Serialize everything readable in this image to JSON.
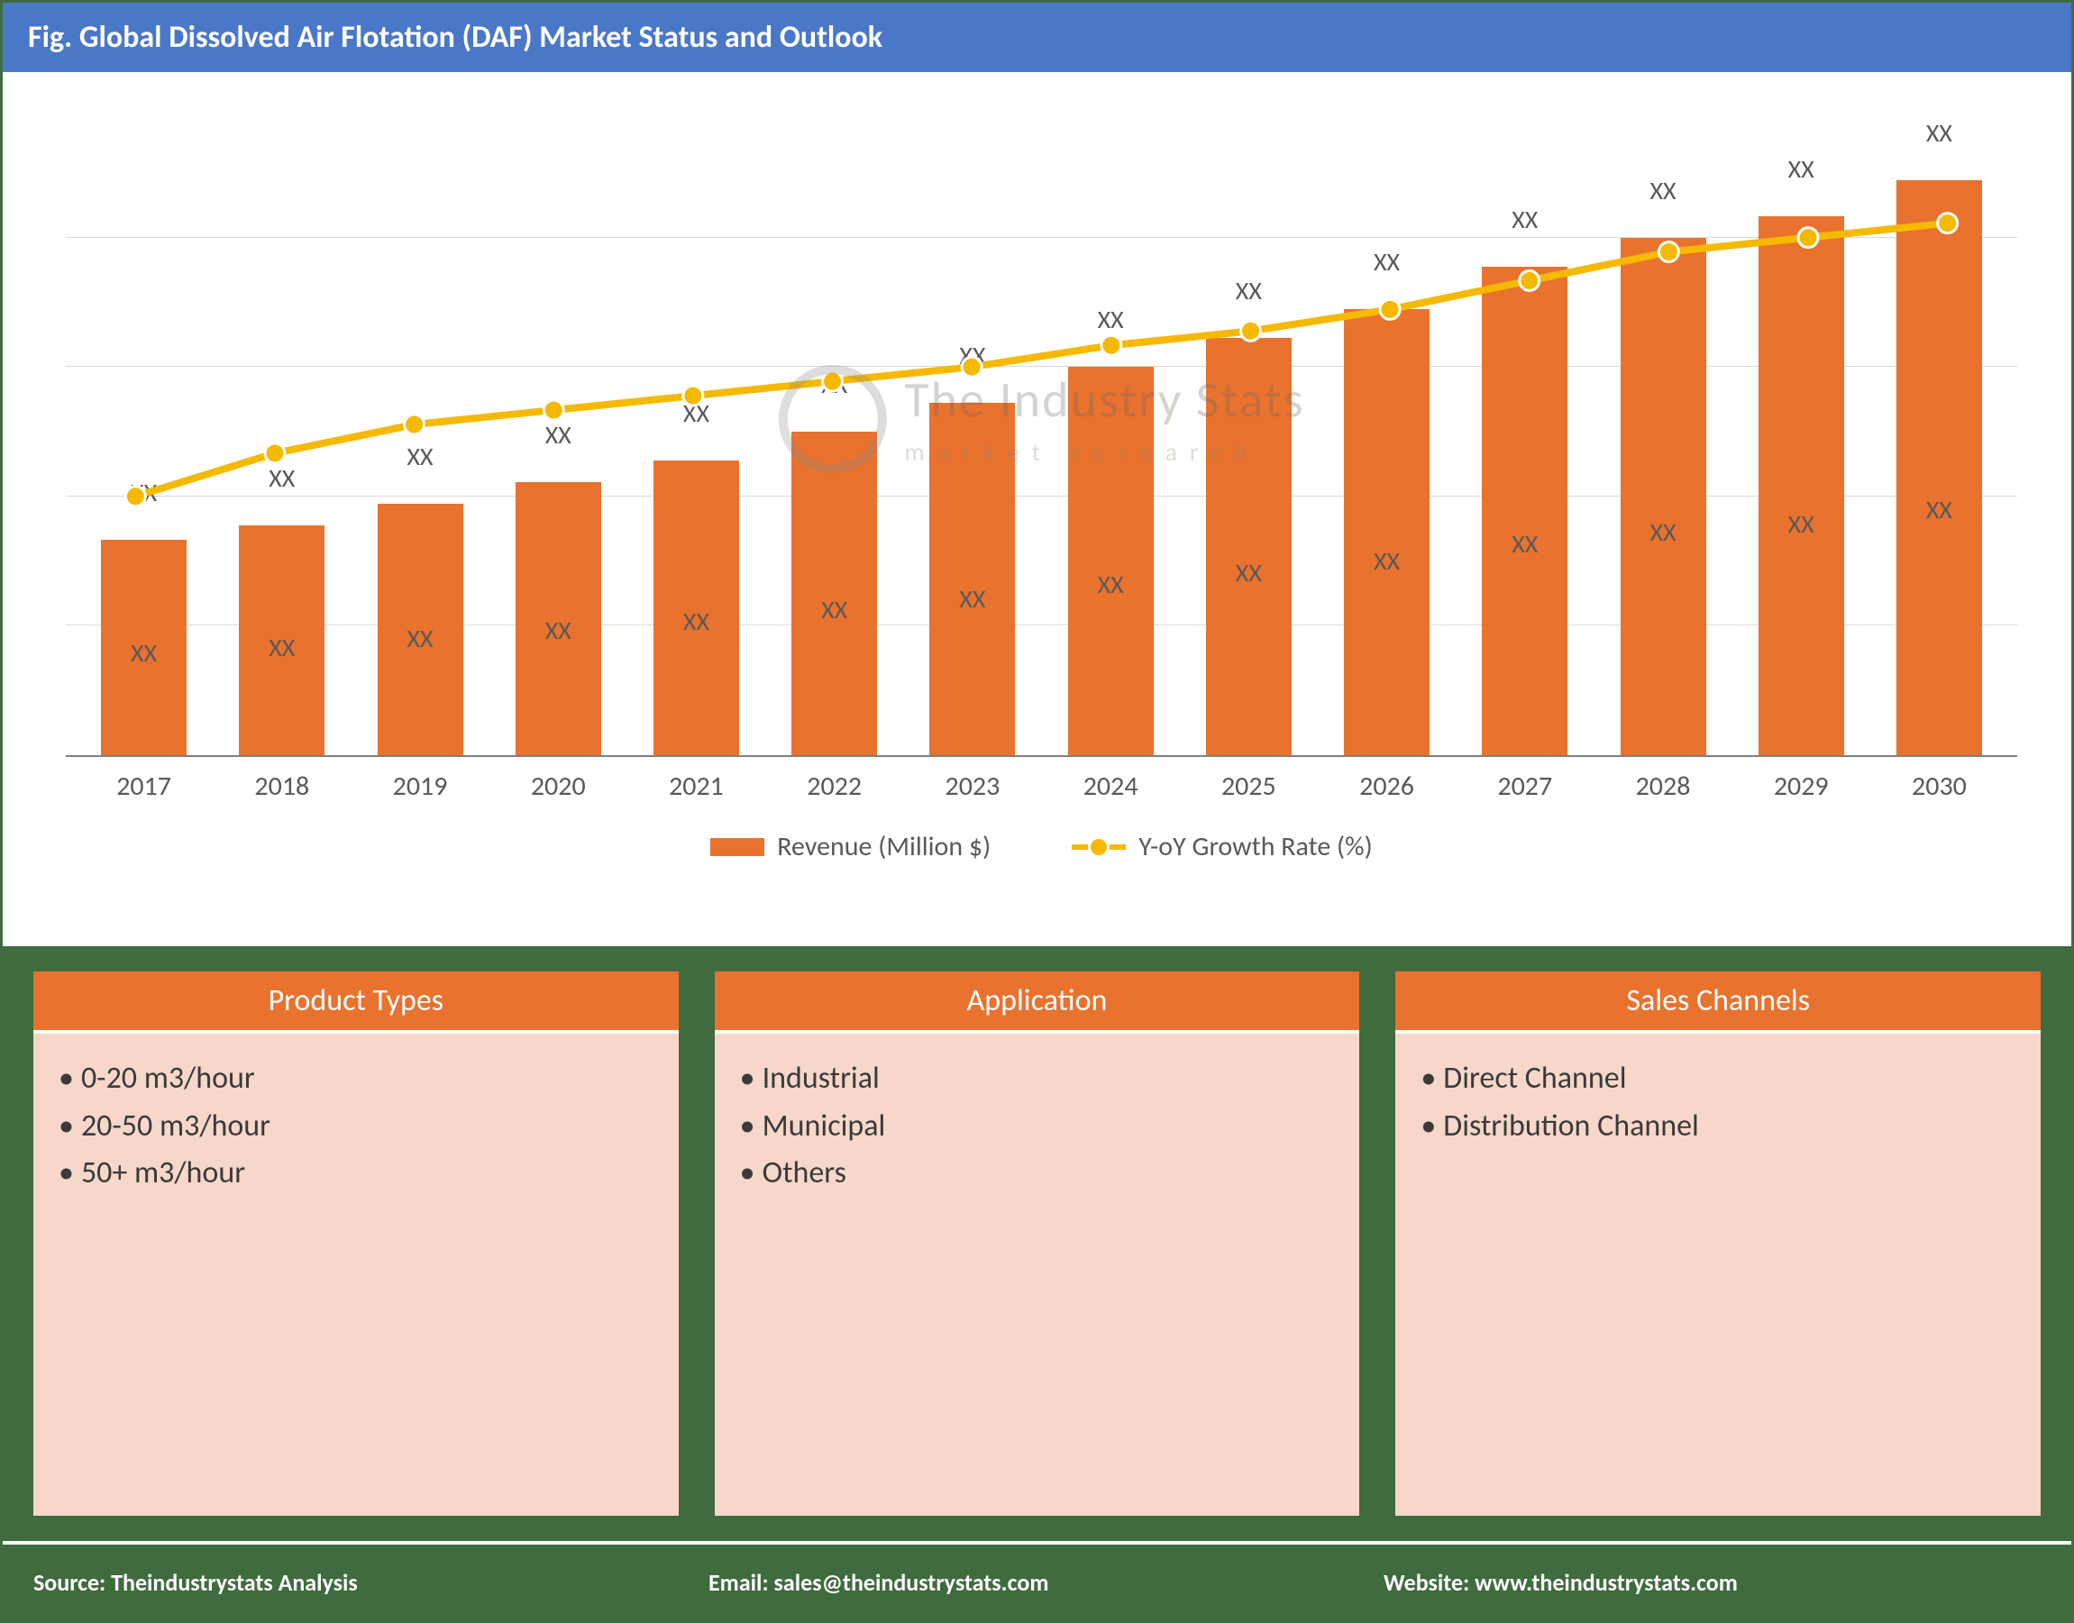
{
  "title": "Fig. Global Dissolved Air Flotation (DAF) Market Status and Outlook",
  "chart": {
    "type": "bar+line",
    "categories": [
      "2017",
      "2018",
      "2019",
      "2020",
      "2021",
      "2022",
      "2023",
      "2024",
      "2025",
      "2026",
      "2027",
      "2028",
      "2029",
      "2030"
    ],
    "bar_values": [
      300,
      320,
      350,
      380,
      410,
      450,
      490,
      540,
      580,
      620,
      680,
      720,
      750,
      800
    ],
    "bar_top_labels": [
      "XX",
      "XX",
      "XX",
      "XX",
      "XX",
      "XX",
      "XX",
      "XX",
      "XX",
      "XX",
      "XX",
      "XX",
      "XX",
      "XX"
    ],
    "bar_mid_labels": [
      "XX",
      "XX",
      "XX",
      "XX",
      "XX",
      "XX",
      "XX",
      "XX",
      "XX",
      "XX",
      "XX",
      "XX",
      "XX",
      "XX"
    ],
    "line_values": [
      360,
      420,
      460,
      480,
      500,
      520,
      540,
      570,
      590,
      620,
      660,
      700,
      720,
      740
    ],
    "y_max": 900,
    "bar_color": "#e9722e",
    "line_color": "#f5b900",
    "marker_fill": "#f5b900",
    "marker_stroke": "#ffffff",
    "grid_color": "#d9d9d9",
    "axis_color": "#7f7f7f",
    "text_color": "#595959",
    "line_width": 8,
    "marker_radius": 11,
    "legend_bar": "Revenue (Million $)",
    "legend_line": "Y-oY Growth Rate (%)"
  },
  "watermark": {
    "line1": "The Industry Stats",
    "line2": "market   research"
  },
  "panels": [
    {
      "title": "Product Types",
      "items": [
        "0-20 m3/hour",
        "20-50 m3/hour",
        "50+ m3/hour"
      ]
    },
    {
      "title": "Application",
      "items": [
        "Industrial",
        "Municipal",
        "Others"
      ]
    },
    {
      "title": "Sales Channels",
      "items": [
        "Direct Channel",
        "Distribution Channel"
      ]
    }
  ],
  "panel_colors": {
    "head_bg": "#e9722e",
    "body_bg": "#f6d7ca",
    "head_text": "#ffffff",
    "body_text": "#3a3a3a"
  },
  "footer": {
    "source_label": "Source:",
    "source_value": "Theindustrystats Analysis",
    "email_label": "Email:",
    "email_value": "sales@theindustrystats.com",
    "website_label": "Website:",
    "website_value": "www.theindustrystats.com"
  },
  "frame_border_color": "#3f6b3f",
  "title_bg": "#4a78c8"
}
